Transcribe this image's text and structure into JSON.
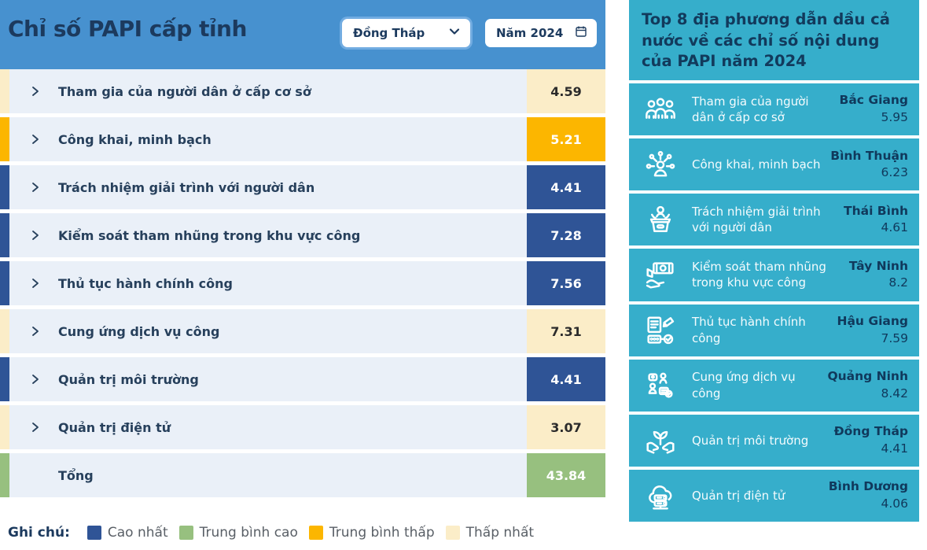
{
  "left_panel": {
    "title": "Chỉ số PAPI cấp tỉnh",
    "province_select": {
      "value": "Đồng Tháp",
      "icon": "chevron-down-icon"
    },
    "year_select": {
      "value": "Năm 2024",
      "icon": "calendar-icon"
    },
    "rows": [
      {
        "label": "Tham gia của người dân ở cấp cơ sở",
        "value": "4.59",
        "level": "lowest",
        "expandable": true
      },
      {
        "label": "Công khai, minh bạch",
        "value": "5.21",
        "level": "mid-low",
        "expandable": true
      },
      {
        "label": "Trách nhiệm giải trình với người dân",
        "value": "4.41",
        "level": "highest",
        "expandable": true
      },
      {
        "label": "Kiểm soát tham nhũng trong khu vực công",
        "value": "7.28",
        "level": "highest",
        "expandable": true
      },
      {
        "label": "Thủ tục hành chính công",
        "value": "7.56",
        "level": "highest",
        "expandable": true
      },
      {
        "label": "Cung ứng dịch vụ công",
        "value": "7.31",
        "level": "lowest",
        "expandable": true
      },
      {
        "label": "Quản trị môi trường",
        "value": "4.41",
        "level": "highest",
        "expandable": true
      },
      {
        "label": "Quản trị điện tử",
        "value": "3.07",
        "level": "lowest",
        "expandable": true
      },
      {
        "label": "Tổng",
        "value": "43.84",
        "level": "mid-high",
        "expandable": false
      }
    ],
    "legend": {
      "label": "Ghi chú:",
      "items": [
        {
          "label": "Cao nhất",
          "color": "#2f5496"
        },
        {
          "label": "Trung bình cao",
          "color": "#97c07f"
        },
        {
          "label": "Trung bình thấp",
          "color": "#fcb600"
        },
        {
          "label": "Thấp nhất",
          "color": "#fbedc8"
        }
      ]
    }
  },
  "right_panel": {
    "title": "Top 8 địa phương dẫn dầu cả nước về các chỉ số nội dung của PAPI năm 2024",
    "items": [
      {
        "icon": "people-group-icon",
        "label": "Tham gia của người dân dân ở cấp cơ sở",
        "label_display": "Tham gia của người dân ở cấp cơ sở",
        "province": "Bắc Giang",
        "value": "5.95"
      },
      {
        "icon": "person-network-icon",
        "label_display": "Công khai, minh bạch",
        "province": "Bình Thuận",
        "value": "6.23"
      },
      {
        "icon": "speaker-podium-icon",
        "label_display": "Trách nhiệm giải trình với người dân",
        "province": "Thái Bình",
        "value": "4.61"
      },
      {
        "icon": "hand-money-icon",
        "label_display": "Kiểm soát tham nhũng trong khu vực công",
        "province": "Tây Ninh",
        "value": "8.2"
      },
      {
        "icon": "documents-check-icon",
        "label_display": "Thủ tục hành chính công",
        "province": "Hậu Giang",
        "value": "7.59"
      },
      {
        "icon": "people-service-icon",
        "label_display": "Cung ứng dịch vụ công",
        "province": "Quảng Ninh",
        "value": "8.42"
      },
      {
        "icon": "hands-plant-icon",
        "label_display": "Quản trị môi trường",
        "province": "Đồng Tháp",
        "value": "4.41"
      },
      {
        "icon": "cloud-server-icon",
        "label_display": "Quản trị điện tử",
        "province": "Bình Dương",
        "value": "4.06"
      }
    ]
  },
  "colors": {
    "header_blue": "#4791cf",
    "row_bg": "#eaf0f8",
    "highest": "#2f5496",
    "mid_high": "#97c07f",
    "mid_low": "#fcb600",
    "lowest": "#fbedc8",
    "teal_panel": "#36aecb",
    "navy_text": "#1c3a5e"
  }
}
